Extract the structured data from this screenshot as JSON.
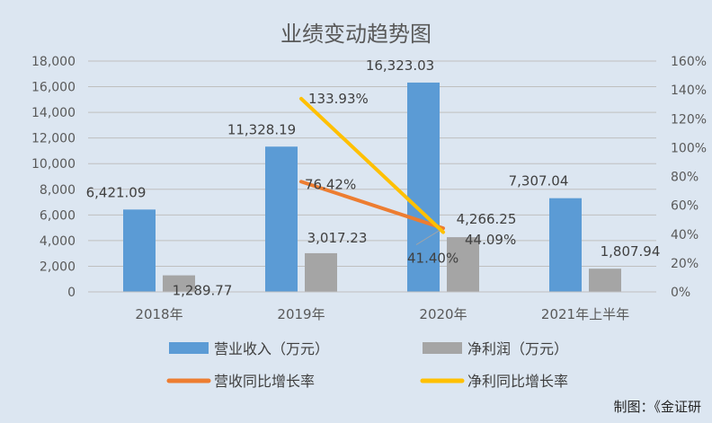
{
  "chart_data": {
    "type": "bar",
    "title": "业绩变动趋势图",
    "categories": [
      "2018年",
      "2019年",
      "2020年",
      "2021年上半年"
    ],
    "ylim_left": [
      0,
      18000
    ],
    "yticks_left": [
      "0",
      "2,000",
      "4,000",
      "6,000",
      "8,000",
      "10,000",
      "12,000",
      "14,000",
      "16,000",
      "18,000"
    ],
    "ylim_right": [
      0,
      160
    ],
    "yticks_right": [
      "0%",
      "20%",
      "40%",
      "60%",
      "80%",
      "100%",
      "120%",
      "140%",
      "160%"
    ],
    "grid": true,
    "legend_position": "bottom",
    "series": [
      {
        "name": "营业收入（万元）",
        "type": "bar",
        "axis": "left",
        "color": "#5b9bd5",
        "values": [
          6421.09,
          11328.19,
          16323.03,
          7307.04
        ],
        "labels": [
          "6,421.09",
          "11,328.19",
          "16,323.03",
          "7,307.04"
        ]
      },
      {
        "name": "净利润（万元）",
        "type": "bar",
        "axis": "left",
        "color": "#a5a5a5",
        "values": [
          1289.77,
          3017.23,
          4266.25,
          1807.94
        ],
        "labels": [
          "1,289.77",
          "3,017.23",
          "4,266.25",
          "1,807.94"
        ]
      },
      {
        "name": "营收同比增长率",
        "type": "line",
        "axis": "right",
        "color": "#ed7d31",
        "points": [
          {
            "category": "2019年",
            "value": 76.42,
            "label": "76.42%"
          },
          {
            "category": "2020年",
            "value": 44.09,
            "label": "44.09%"
          }
        ]
      },
      {
        "name": "净利同比增长率",
        "type": "line",
        "axis": "right",
        "color": "#ffc000",
        "points": [
          {
            "category": "2019年",
            "value": 133.93,
            "label": "133.93%"
          },
          {
            "category": "2020年",
            "value": 41.4,
            "label": "41.40%"
          }
        ]
      }
    ],
    "credit": "制图：《金证研"
  }
}
